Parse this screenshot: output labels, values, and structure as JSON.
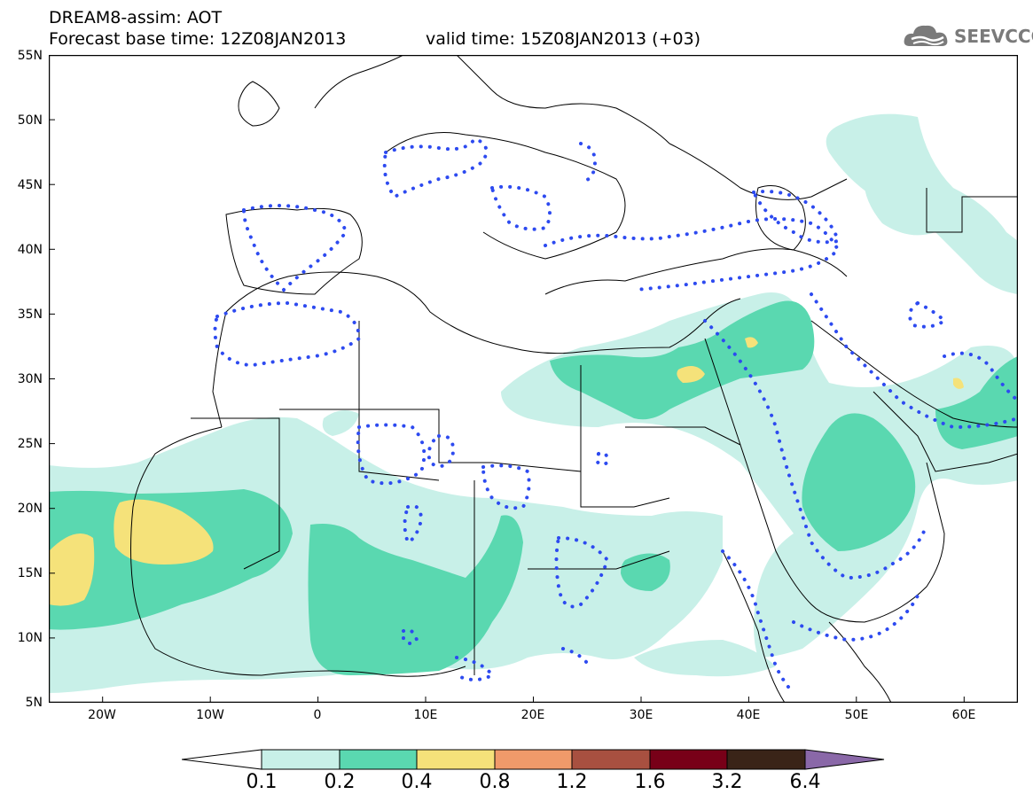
{
  "header": {
    "line1": "DREAM8-assim: AOT",
    "line2": "Forecast base time: 12Z08JAN2013",
    "valid_time": "valid time: 15Z08JAN2013 (+03)"
  },
  "logo": {
    "text": "SEEVCCC",
    "icon": "cloud-logo-icon"
  },
  "map": {
    "lon_range": [
      -25,
      65
    ],
    "lat_range": [
      5,
      55
    ],
    "y_ticks": [
      "55N",
      "50N",
      "45N",
      "40N",
      "35N",
      "30N",
      "25N",
      "20N",
      "15N",
      "10N",
      "5N"
    ],
    "x_ticks": [
      "20W",
      "10W",
      "0",
      "10E",
      "20E",
      "30E",
      "40E",
      "50E",
      "60E"
    ]
  },
  "colorbar": {
    "labels": [
      "0.1",
      "0.2",
      "0.4",
      "0.8",
      "1.2",
      "1.6",
      "3.2",
      "6.4"
    ],
    "colors": [
      "#ffffff",
      "#c8f0e8",
      "#5ad8b0",
      "#f5e27a",
      "#f09a6a",
      "#a85040",
      "#780018",
      "#3a2418",
      "#8a68a8"
    ]
  },
  "colors": {
    "level_0_1": "#c8f0e8",
    "level_0_2": "#5ad8b0",
    "level_0_4": "#f5e27a",
    "contour_dots": "#2d4af0",
    "borders": "#000000"
  }
}
